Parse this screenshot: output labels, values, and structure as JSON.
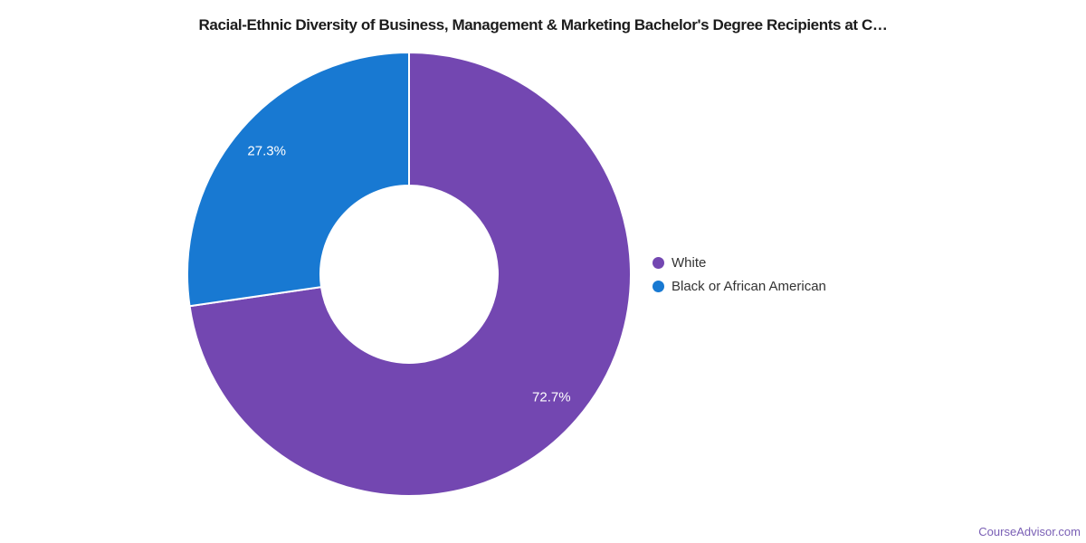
{
  "chart_data": {
    "type": "pie",
    "subtype": "donut",
    "title": "Racial-Ethnic Diversity of Business, Management & Marketing Bachelor's Degree Recipients at C…",
    "categories": [
      "White",
      "Black or African American"
    ],
    "values": [
      72.7,
      27.3
    ],
    "series": [
      {
        "name": "White",
        "value": 72.7,
        "label": "72.7%",
        "color": "#7347b1"
      },
      {
        "name": "Black or African American",
        "value": 27.3,
        "label": "27.3%",
        "color": "#1879d2"
      }
    ],
    "legend_position": "right",
    "start_angle_deg": 0,
    "direction": "clockwise",
    "label_color": "#ffffff",
    "slice_border_color": "#ffffff"
  },
  "watermark": {
    "text": "CourseAdvisor.com",
    "color": "#7a5fb5"
  }
}
